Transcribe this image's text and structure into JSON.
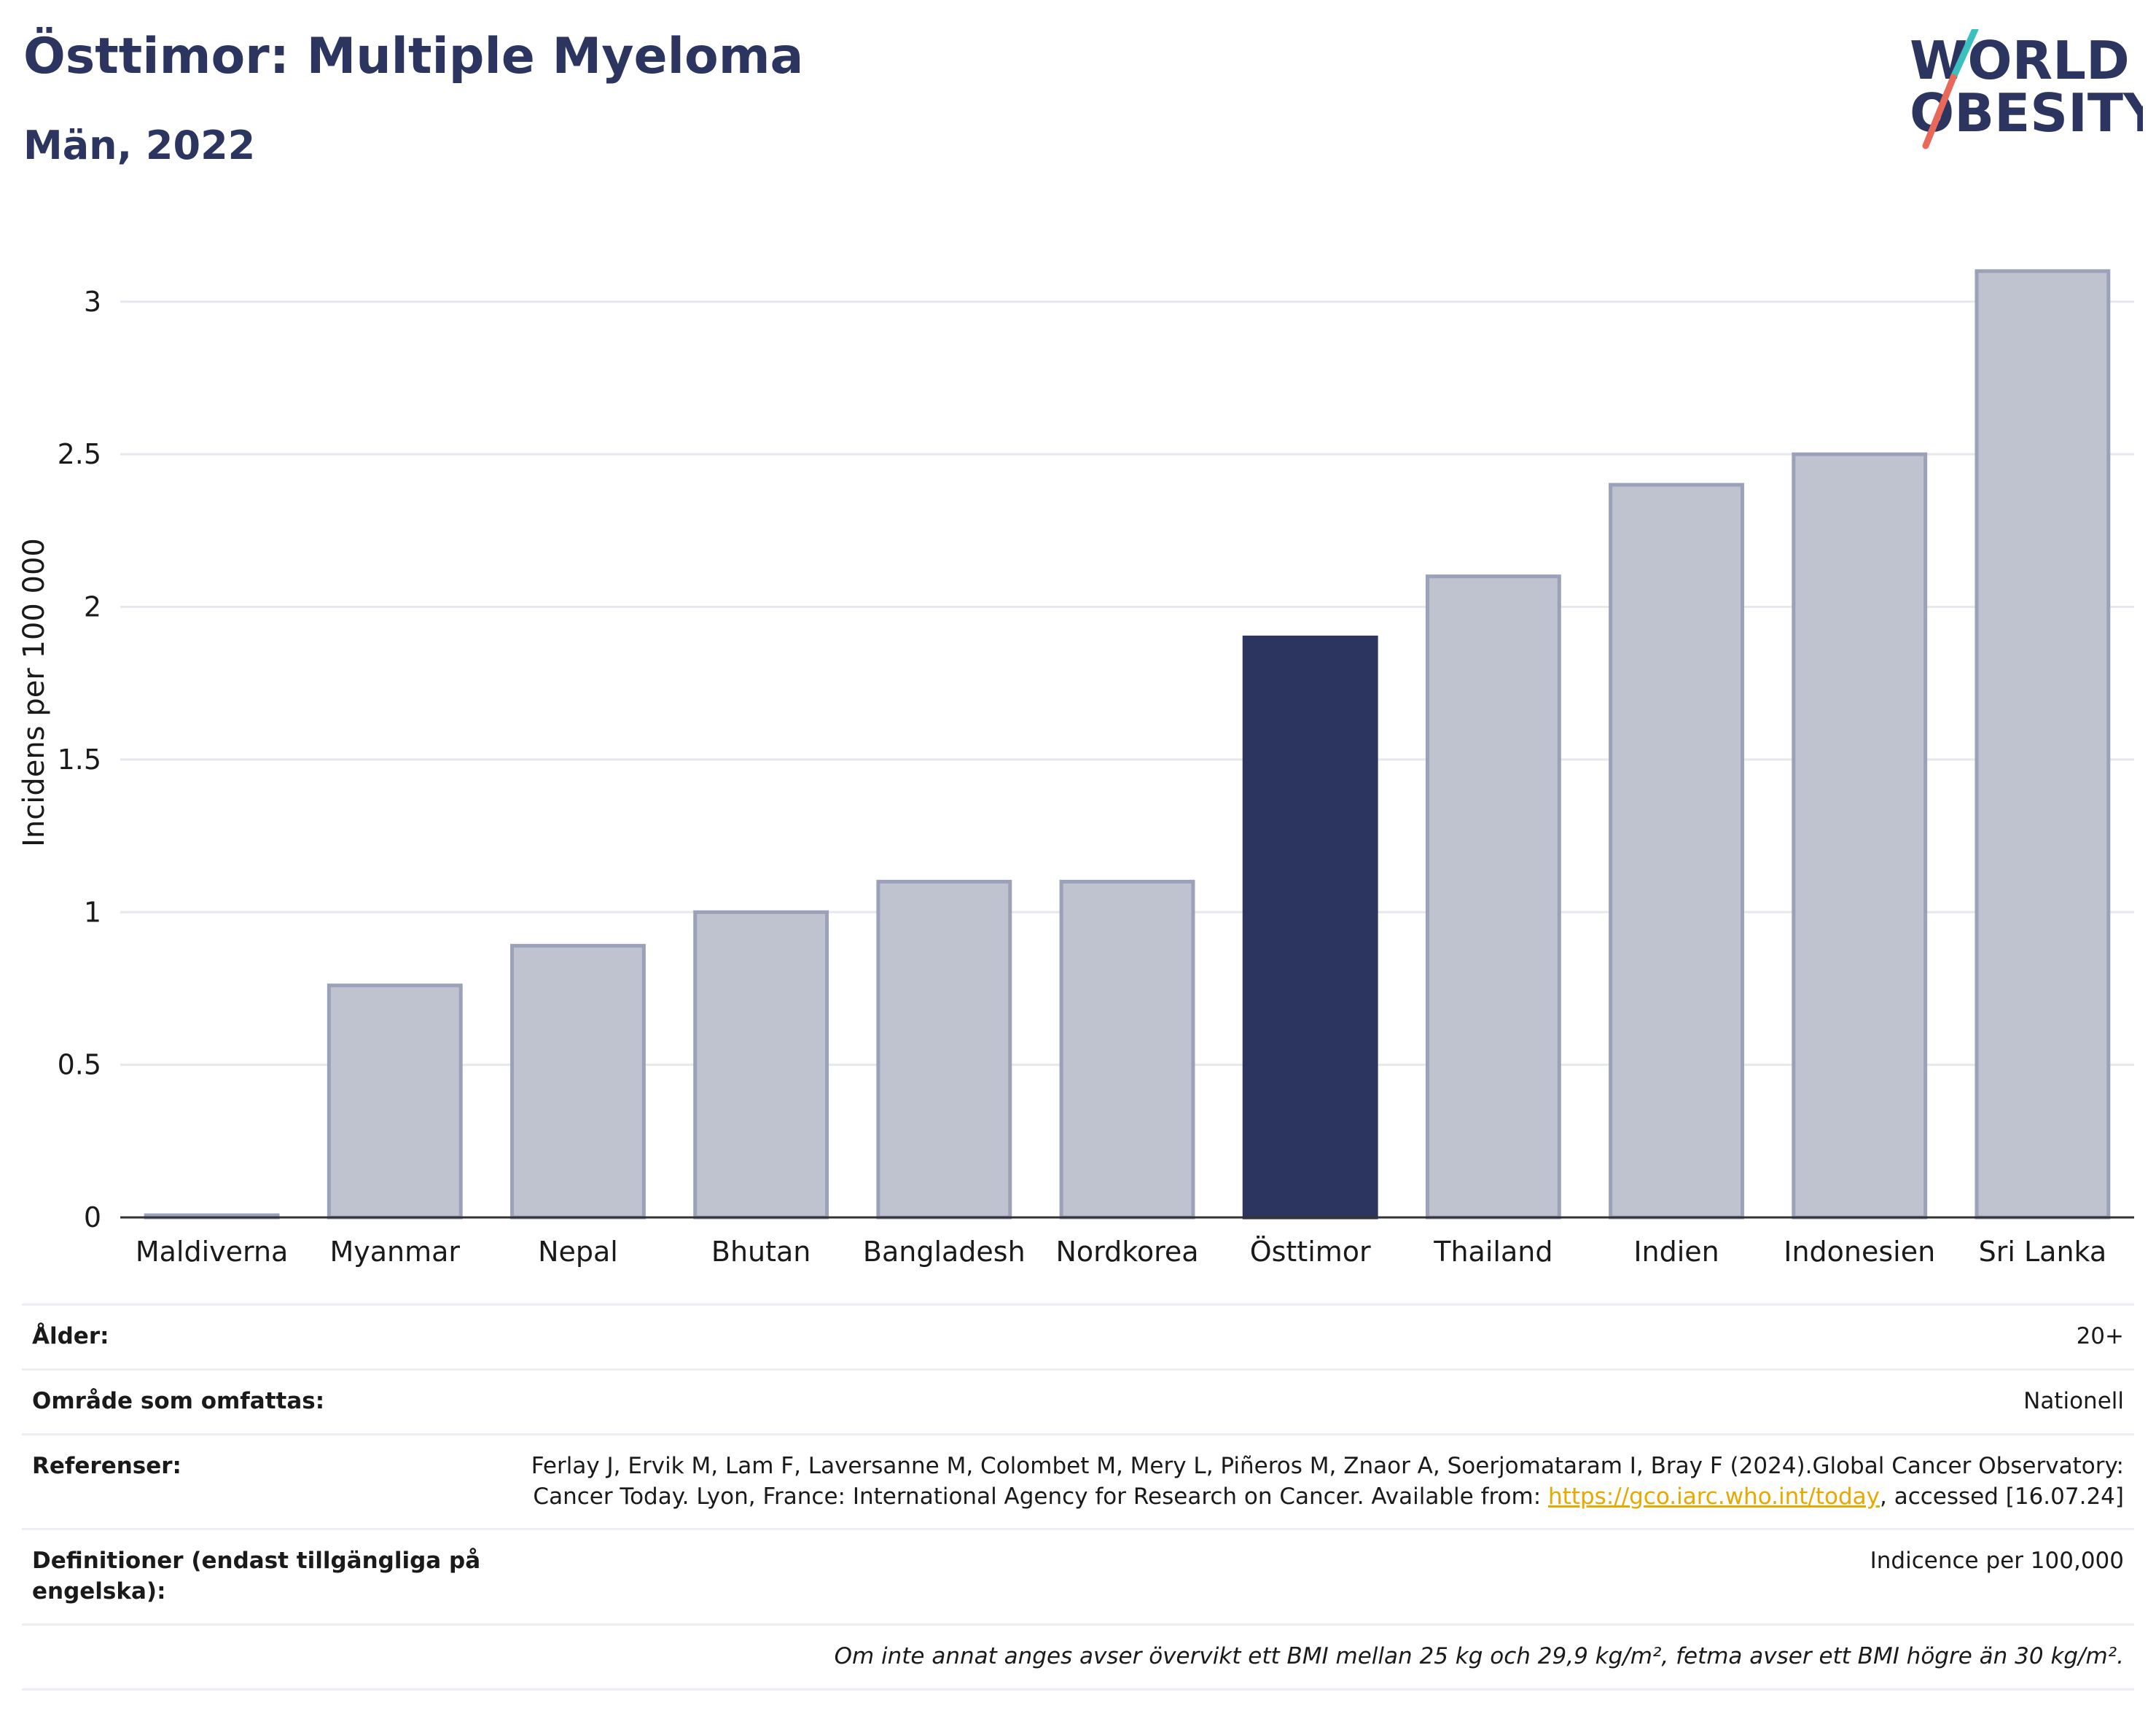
{
  "header": {
    "title": "Östtimor: Multiple Myeloma",
    "subtitle": "Män, 2022"
  },
  "logo": {
    "line1": "WORLD",
    "line2": "OBESITY",
    "accent_colors": [
      "#3bbfbf",
      "#e8685a"
    ]
  },
  "colors": {
    "highlight": "#2b3560",
    "bar": "#bfc3cf",
    "bar_stroke": "#9aa1b8",
    "grid": "#e6e8ee"
  },
  "chart_data": {
    "type": "bar",
    "categories": [
      "Maldiverna",
      "Myanmar",
      "Nepal",
      "Bhutan",
      "Bangladesh",
      "Nordkorea",
      "Östtimor",
      "Thailand",
      "Indien",
      "Indonesien",
      "Sri Lanka"
    ],
    "values": [
      0,
      0.76,
      0.89,
      1.0,
      1.1,
      1.1,
      1.9,
      2.1,
      2.4,
      2.5,
      3.1
    ],
    "highlight": "Östtimor",
    "ylabel": "Incidens per 100 000",
    "xlabel": "",
    "ylim": [
      0,
      3.2
    ],
    "yticks": [
      0,
      0.5,
      1,
      1.5,
      2,
      2.5,
      3
    ],
    "ytick_labels": [
      "0",
      "0.5",
      "1",
      "1.5",
      "2",
      "2.5",
      "3"
    ],
    "grid": true
  },
  "info": {
    "age_label": "Ålder:",
    "age_value": "20+",
    "area_label": "Område som omfattas:",
    "area_value": "Nationell",
    "ref_label": "Referenser:",
    "ref_text_1": "Ferlay J, Ervik M, Lam F, Laversanne M, Colombet M, Mery L, Piñeros M, Znaor A, Soerjomataram I, Bray F (2024).Global Cancer Observatory: Cancer Today. Lyon, France: International Agency for Research on Cancer. Available from: ",
    "ref_link": "https://gco.iarc.who.int/today",
    "ref_text_2": ", accessed [16.07.24]",
    "def_label": "Definitioner (endast tillgängliga på engelska):",
    "def_value": "Indicence per 100,000",
    "note": "Om inte annat anges avser övervikt ett BMI mellan 25 kg och 29,9 kg/m², fetma avser ett BMI högre än 30 kg/m²."
  }
}
